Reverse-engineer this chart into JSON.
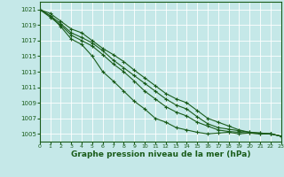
{
  "title": "Graphe pression niveau de la mer (hPa)",
  "bg_color": "#c5e8e8",
  "grid_color": "#ffffff",
  "line_color": "#1a5c1a",
  "xlim": [
    0,
    23
  ],
  "ylim": [
    1004.0,
    1022.0
  ],
  "yticks": [
    1005,
    1007,
    1009,
    1011,
    1013,
    1015,
    1017,
    1019,
    1021
  ],
  "xticks": [
    0,
    1,
    2,
    3,
    4,
    5,
    6,
    7,
    8,
    9,
    10,
    11,
    12,
    13,
    14,
    15,
    16,
    17,
    18,
    19,
    20,
    21,
    22,
    23
  ],
  "series": [
    [
      1021.0,
      1020.2,
      1018.8,
      1017.2,
      1016.5,
      1015.0,
      1013.0,
      1011.8,
      1010.5,
      1009.2,
      1008.2,
      1007.0,
      1006.5,
      1005.8,
      1005.5,
      1005.2,
      1005.0,
      1005.1,
      1005.2,
      1005.0,
      1005.1,
      1005.0,
      1005.0,
      1004.7
    ],
    [
      1021.0,
      1020.0,
      1019.0,
      1017.7,
      1017.0,
      1016.3,
      1015.2,
      1014.0,
      1013.0,
      1011.8,
      1010.5,
      1009.5,
      1008.5,
      1007.8,
      1007.3,
      1006.5,
      1006.0,
      1005.5,
      1005.3,
      1005.2,
      1005.1,
      1005.0,
      1005.0,
      1004.7
    ],
    [
      1021.0,
      1020.2,
      1019.2,
      1018.0,
      1017.4,
      1016.7,
      1015.7,
      1014.5,
      1013.5,
      1012.5,
      1011.5,
      1010.5,
      1009.5,
      1008.7,
      1008.2,
      1007.2,
      1006.3,
      1005.8,
      1005.6,
      1005.4,
      1005.2,
      1005.1,
      1005.0,
      1004.7
    ],
    [
      1021.0,
      1020.5,
      1019.5,
      1018.5,
      1018.0,
      1017.0,
      1016.0,
      1015.2,
      1014.3,
      1013.2,
      1012.2,
      1011.2,
      1010.2,
      1009.5,
      1009.0,
      1008.0,
      1007.0,
      1006.5,
      1006.0,
      1005.5,
      1005.2,
      1005.1,
      1005.0,
      1004.7
    ]
  ]
}
